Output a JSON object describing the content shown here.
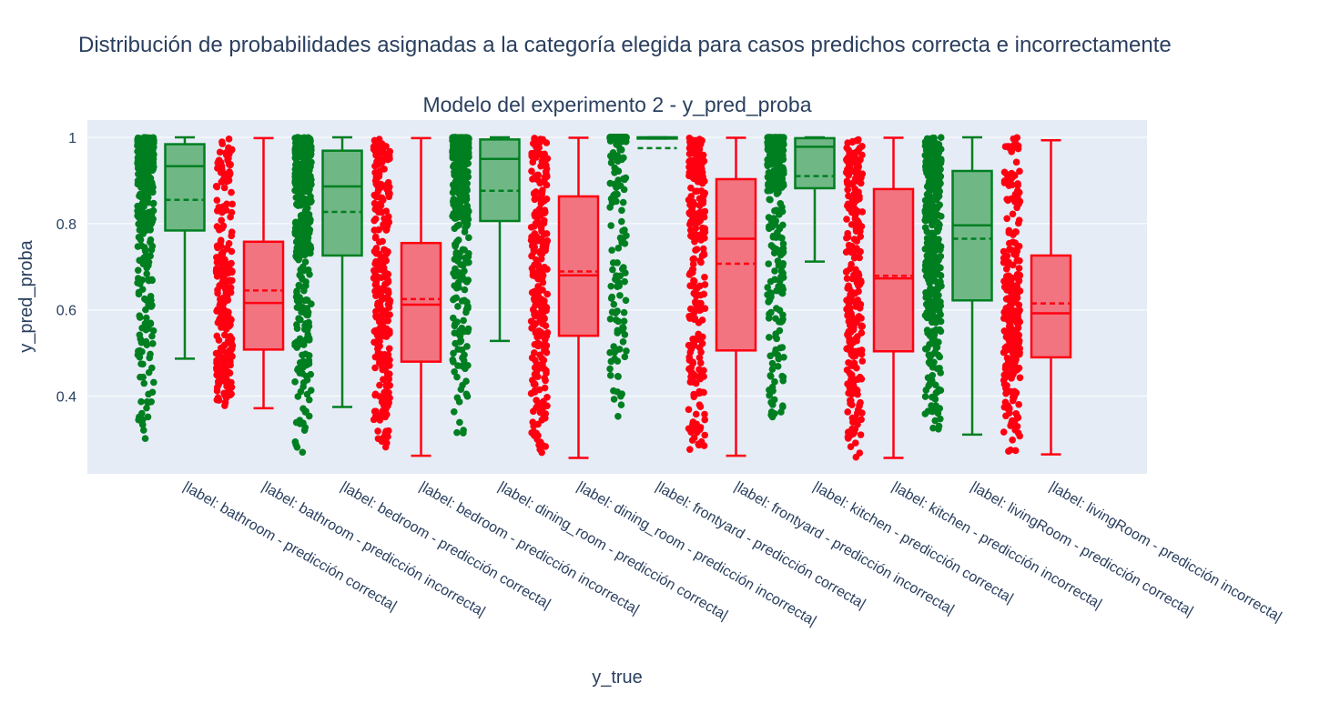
{
  "figure": {
    "title": "Distribución de probabilidades asignadas a la categoría elegida para casos predichos correcta e incorrectamente"
  },
  "chart_data": {
    "type": "box",
    "title": "Modelo del experimento 2 - y_pred_proba",
    "xlabel": "y_true",
    "ylabel": "y_pred_proba",
    "ylim": [
      0.22,
      1.04
    ],
    "yticks": [
      0.4,
      0.6,
      0.8,
      1
    ],
    "ytick_labels": [
      "0.4",
      "0.6",
      "0.8",
      "1"
    ],
    "grid": true,
    "boxpoints": "all",
    "colors": {
      "correct": "#007f21",
      "correct_fill": "#70b786",
      "incorrect": "#ff0011",
      "incorrect_fill": "#f27480"
    },
    "categories": [
      "|label: bathroom - predicción correcta|",
      "|label: bathroom - predicción incorrecta|",
      "|label: bedroom - predicción correcta|",
      "|label: bedroom - predicción incorrecta|",
      "|label: dining_room - predicción correcta|",
      "|label: dining_room - predicción incorrecta|",
      "|label: frontyard - predicción correcta|",
      "|label: frontyard - predicción incorrecta|",
      "|label: kitchen - predicción correcta|",
      "|label: kitchen - predicción incorrecta|",
      "|label: livingRoom - predicción correcta|",
      "|label: livingRoom - predicción incorrecta|"
    ],
    "series": [
      {
        "group": "correct",
        "min": 0.487,
        "q1": 0.784,
        "median": 0.933,
        "mean": 0.855,
        "q3": 0.984,
        "max": 1.0,
        "points_min": 0.285
      },
      {
        "group": "incorrect",
        "min": 0.372,
        "q1": 0.508,
        "median": 0.616,
        "mean": 0.645,
        "q3": 0.758,
        "max": 0.998,
        "points_min": 0.372
      },
      {
        "group": "correct",
        "min": 0.375,
        "q1": 0.726,
        "median": 0.886,
        "mean": 0.827,
        "q3": 0.969,
        "max": 1.0,
        "points_min": 0.267
      },
      {
        "group": "incorrect",
        "min": 0.262,
        "q1": 0.48,
        "median": 0.612,
        "mean": 0.625,
        "q3": 0.755,
        "max": 0.998,
        "points_min": 0.262
      },
      {
        "group": "correct",
        "min": 0.528,
        "q1": 0.806,
        "median": 0.95,
        "mean": 0.876,
        "q3": 0.995,
        "max": 1.0,
        "points_min": 0.298
      },
      {
        "group": "incorrect",
        "min": 0.257,
        "q1": 0.54,
        "median": 0.68,
        "mean": 0.689,
        "q3": 0.863,
        "max": 0.999,
        "points_min": 0.257
      },
      {
        "group": "correct",
        "min": 0.997,
        "q1": 0.997,
        "median": 0.999,
        "mean": 0.975,
        "q3": 1.0,
        "max": 1.0,
        "points_min": 0.341
      },
      {
        "group": "incorrect",
        "min": 0.262,
        "q1": 0.506,
        "median": 0.765,
        "mean": 0.707,
        "q3": 0.903,
        "max": 0.999,
        "points_min": 0.262
      },
      {
        "group": "correct",
        "min": 0.712,
        "q1": 0.882,
        "median": 0.978,
        "mean": 0.91,
        "q3": 0.998,
        "max": 1.0,
        "points_min": 0.323
      },
      {
        "group": "incorrect",
        "min": 0.257,
        "q1": 0.504,
        "median": 0.673,
        "mean": 0.679,
        "q3": 0.88,
        "max": 0.999,
        "points_min": 0.257
      },
      {
        "group": "correct",
        "min": 0.311,
        "q1": 0.622,
        "median": 0.796,
        "mean": 0.765,
        "q3": 0.922,
        "max": 1.0,
        "points_min": 0.311
      },
      {
        "group": "incorrect",
        "min": 0.265,
        "q1": 0.49,
        "median": 0.592,
        "mean": 0.615,
        "q3": 0.726,
        "max": 0.993,
        "points_min": 0.265
      }
    ]
  }
}
